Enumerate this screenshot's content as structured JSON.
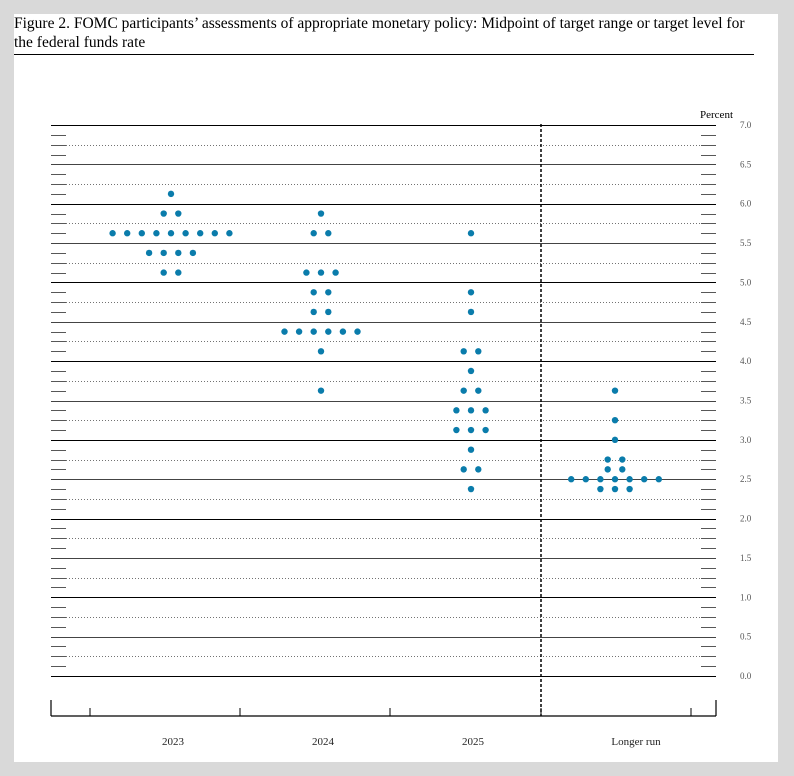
{
  "figure": {
    "title": "Figure 2.  FOMC participants’ assessments of appropriate monetary policy:  Midpoint of target range or target level for the federal funds rate"
  },
  "chart_data": {
    "type": "scatter",
    "ylabel": "Percent",
    "ylim": [
      0.0,
      7.0
    ],
    "yticks": [
      "0.0",
      "0.5",
      "1.0",
      "1.5",
      "2.0",
      "2.5",
      "3.0",
      "3.5",
      "4.0",
      "4.5",
      "5.0",
      "5.5",
      "6.0",
      "6.5",
      "7.0"
    ],
    "categories": [
      "2023",
      "2024",
      "2025",
      "Longer run"
    ],
    "dot_color": "#0a7cab",
    "series": [
      {
        "category": "2023",
        "points": [
          {
            "y": 6.125,
            "n": 1
          },
          {
            "y": 5.875,
            "n": 2
          },
          {
            "y": 5.625,
            "n": 9
          },
          {
            "y": 5.375,
            "n": 4
          },
          {
            "y": 5.125,
            "n": 2
          }
        ]
      },
      {
        "category": "2024",
        "points": [
          {
            "y": 5.875,
            "n": 1
          },
          {
            "y": 5.625,
            "n": 2
          },
          {
            "y": 5.125,
            "n": 3
          },
          {
            "y": 4.875,
            "n": 2
          },
          {
            "y": 4.625,
            "n": 2
          },
          {
            "y": 4.375,
            "n": 6
          },
          {
            "y": 4.125,
            "n": 1
          },
          {
            "y": 3.625,
            "n": 1
          }
        ]
      },
      {
        "category": "2025",
        "points": [
          {
            "y": 5.625,
            "n": 1
          },
          {
            "y": 4.875,
            "n": 1
          },
          {
            "y": 4.625,
            "n": 1
          },
          {
            "y": 4.125,
            "n": 2
          },
          {
            "y": 3.875,
            "n": 1
          },
          {
            "y": 3.625,
            "n": 2
          },
          {
            "y": 3.375,
            "n": 3
          },
          {
            "y": 3.125,
            "n": 3
          },
          {
            "y": 2.875,
            "n": 1
          },
          {
            "y": 2.625,
            "n": 2
          },
          {
            "y": 2.375,
            "n": 1
          }
        ]
      },
      {
        "category": "Longer run",
        "points": [
          {
            "y": 3.625,
            "n": 1
          },
          {
            "y": 3.25,
            "n": 1
          },
          {
            "y": 3.0,
            "n": 1
          },
          {
            "y": 2.75,
            "n": 2
          },
          {
            "y": 2.625,
            "n": 2
          },
          {
            "y": 2.5,
            "n": 7
          },
          {
            "y": 2.375,
            "n": 3
          }
        ]
      }
    ]
  }
}
